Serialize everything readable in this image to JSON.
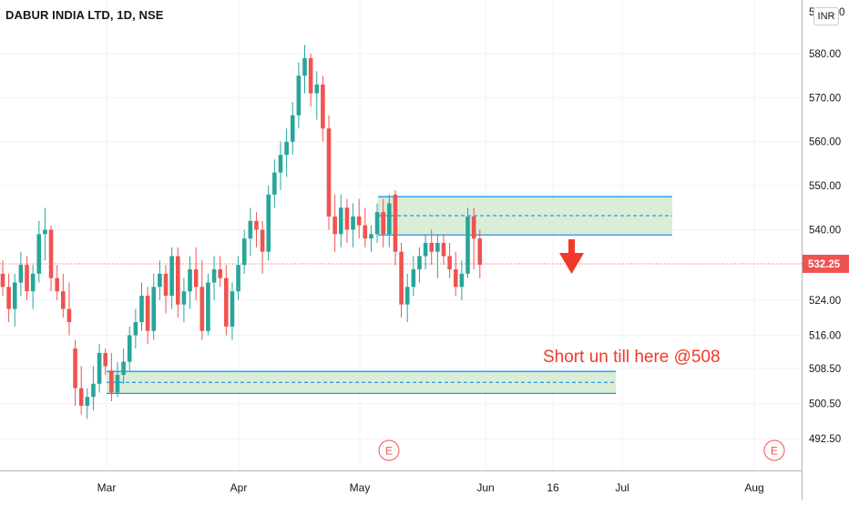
{
  "header": {
    "title": "DABUR INDIA LTD, 1D, NSE",
    "currency": "INR"
  },
  "chart_data": {
    "type": "candlestick",
    "ylim": [
      488,
      587
    ],
    "y_ticks": [
      {
        "value": 500.5,
        "label": "500.50"
      },
      {
        "value": 508.5,
        "label": "508.50"
      },
      {
        "value": 516.0,
        "label": "516.00"
      },
      {
        "value": 524.0,
        "label": "524.00"
      },
      {
        "value": 540.0,
        "label": "540.00"
      },
      {
        "value": 550.0,
        "label": "550.00"
      },
      {
        "value": 560.0,
        "label": "560.00"
      },
      {
        "value": 570.0,
        "label": "570.00"
      },
      {
        "value": 580.0,
        "label": "580.00"
      },
      {
        "value": 492.5,
        "label": "492.50"
      }
    ],
    "x_ticks": [
      "Mar",
      "Apr",
      "May",
      "Jun",
      "16",
      "Jul",
      "Aug"
    ],
    "last_price": 532.25,
    "last_price_label": "532.25",
    "colors": {
      "up": "#26a69a",
      "down": "#ef5350",
      "zone_fill": "#d4ead0",
      "zone_line": "#2196f3",
      "last_price": "#ef5350",
      "annotation": "#f0392b"
    },
    "candles": [
      {
        "o": 530,
        "h": 533,
        "l": 525,
        "c": 527
      },
      {
        "o": 527,
        "h": 530,
        "l": 519,
        "c": 522
      },
      {
        "o": 522,
        "h": 530,
        "l": 518,
        "c": 528
      },
      {
        "o": 528,
        "h": 535,
        "l": 525,
        "c": 532
      },
      {
        "o": 532,
        "h": 534,
        "l": 524,
        "c": 526
      },
      {
        "o": 526,
        "h": 532,
        "l": 522,
        "c": 530
      },
      {
        "o": 530,
        "h": 542,
        "l": 528,
        "c": 539
      },
      {
        "o": 539,
        "h": 545,
        "l": 533,
        "c": 540
      },
      {
        "o": 540,
        "h": 541,
        "l": 526,
        "c": 529
      },
      {
        "o": 529,
        "h": 532,
        "l": 524,
        "c": 526
      },
      {
        "o": 526,
        "h": 530,
        "l": 520,
        "c": 522
      },
      {
        "o": 522,
        "h": 528,
        "l": 516,
        "c": 519
      },
      {
        "o": 513,
        "h": 515,
        "l": 500,
        "c": 504
      },
      {
        "o": 504,
        "h": 509,
        "l": 498,
        "c": 500
      },
      {
        "o": 500,
        "h": 504,
        "l": 497,
        "c": 502
      },
      {
        "o": 502,
        "h": 509,
        "l": 499,
        "c": 505
      },
      {
        "o": 505,
        "h": 514,
        "l": 503,
        "c": 512
      },
      {
        "o": 512,
        "h": 513,
        "l": 507,
        "c": 509
      },
      {
        "o": 508,
        "h": 512,
        "l": 501,
        "c": 503
      },
      {
        "o": 503,
        "h": 510,
        "l": 502,
        "c": 507
      },
      {
        "o": 507,
        "h": 513,
        "l": 505,
        "c": 510
      },
      {
        "o": 510,
        "h": 518,
        "l": 508,
        "c": 516
      },
      {
        "o": 516,
        "h": 522,
        "l": 513,
        "c": 519
      },
      {
        "o": 519,
        "h": 528,
        "l": 517,
        "c": 525
      },
      {
        "o": 525,
        "h": 527,
        "l": 514,
        "c": 517
      },
      {
        "o": 517,
        "h": 530,
        "l": 515,
        "c": 527
      },
      {
        "o": 527,
        "h": 533,
        "l": 524,
        "c": 530
      },
      {
        "o": 530,
        "h": 532,
        "l": 521,
        "c": 525
      },
      {
        "o": 525,
        "h": 536,
        "l": 522,
        "c": 534
      },
      {
        "o": 534,
        "h": 536,
        "l": 520,
        "c": 523
      },
      {
        "o": 523,
        "h": 529,
        "l": 519,
        "c": 526
      },
      {
        "o": 526,
        "h": 534,
        "l": 522,
        "c": 531
      },
      {
        "o": 531,
        "h": 536,
        "l": 524,
        "c": 527
      },
      {
        "o": 527,
        "h": 533,
        "l": 515,
        "c": 517
      },
      {
        "o": 517,
        "h": 530,
        "l": 516,
        "c": 528
      },
      {
        "o": 528,
        "h": 534,
        "l": 524,
        "c": 531
      },
      {
        "o": 531,
        "h": 534,
        "l": 527,
        "c": 529
      },
      {
        "o": 529,
        "h": 532,
        "l": 516,
        "c": 518
      },
      {
        "o": 518,
        "h": 528,
        "l": 515,
        "c": 526
      },
      {
        "o": 526,
        "h": 534,
        "l": 524,
        "c": 532
      },
      {
        "o": 532,
        "h": 540,
        "l": 530,
        "c": 538
      },
      {
        "o": 538,
        "h": 545,
        "l": 534,
        "c": 542
      },
      {
        "o": 542,
        "h": 544,
        "l": 536,
        "c": 540
      },
      {
        "o": 540,
        "h": 542,
        "l": 530,
        "c": 535
      },
      {
        "o": 535,
        "h": 550,
        "l": 533,
        "c": 548
      },
      {
        "o": 548,
        "h": 556,
        "l": 545,
        "c": 553
      },
      {
        "o": 553,
        "h": 560,
        "l": 549,
        "c": 557
      },
      {
        "o": 557,
        "h": 563,
        "l": 552,
        "c": 560
      },
      {
        "o": 560,
        "h": 569,
        "l": 557,
        "c": 566
      },
      {
        "o": 566,
        "h": 578,
        "l": 563,
        "c": 575
      },
      {
        "o": 575,
        "h": 582,
        "l": 571,
        "c": 579
      },
      {
        "o": 579,
        "h": 580,
        "l": 568,
        "c": 571
      },
      {
        "o": 571,
        "h": 576,
        "l": 565,
        "c": 573
      },
      {
        "o": 573,
        "h": 575,
        "l": 560,
        "c": 563
      },
      {
        "o": 563,
        "h": 566,
        "l": 540,
        "c": 543
      },
      {
        "o": 543,
        "h": 548,
        "l": 535,
        "c": 539
      },
      {
        "o": 539,
        "h": 548,
        "l": 536,
        "c": 545
      },
      {
        "o": 545,
        "h": 547,
        "l": 537,
        "c": 540
      },
      {
        "o": 540,
        "h": 546,
        "l": 536,
        "c": 543
      },
      {
        "o": 543,
        "h": 547,
        "l": 538,
        "c": 541
      },
      {
        "o": 541,
        "h": 545,
        "l": 536,
        "c": 538
      },
      {
        "o": 538,
        "h": 541,
        "l": 535,
        "c": 539
      },
      {
        "o": 539,
        "h": 546,
        "l": 537,
        "c": 544
      },
      {
        "o": 544,
        "h": 547,
        "l": 536,
        "c": 539
      },
      {
        "o": 539,
        "h": 548,
        "l": 536,
        "c": 546
      },
      {
        "o": 548,
        "h": 549,
        "l": 532,
        "c": 535
      },
      {
        "o": 535,
        "h": 537,
        "l": 520,
        "c": 523
      },
      {
        "o": 523,
        "h": 530,
        "l": 519,
        "c": 527
      },
      {
        "o": 527,
        "h": 534,
        "l": 525,
        "c": 531
      },
      {
        "o": 531,
        "h": 536,
        "l": 528,
        "c": 534
      },
      {
        "o": 534,
        "h": 539,
        "l": 531,
        "c": 537
      },
      {
        "o": 537,
        "h": 540,
        "l": 532,
        "c": 535
      },
      {
        "o": 535,
        "h": 539,
        "l": 529,
        "c": 537
      },
      {
        "o": 537,
        "h": 539,
        "l": 532,
        "c": 534
      },
      {
        "o": 534,
        "h": 537,
        "l": 529,
        "c": 531
      },
      {
        "o": 531,
        "h": 535,
        "l": 525,
        "c": 527
      },
      {
        "o": 527,
        "h": 533,
        "l": 524,
        "c": 530
      },
      {
        "o": 530,
        "h": 545,
        "l": 529,
        "c": 543
      },
      {
        "o": 543,
        "h": 545,
        "l": 531,
        "c": 538
      },
      {
        "o": 538,
        "h": 540,
        "l": 529,
        "c": 532
      }
    ],
    "zones": [
      {
        "top": 547.5,
        "bottom": 538.8,
        "mid": 543.2
      },
      {
        "top": 507.8,
        "bottom": 502.8,
        "mid": 505.3
      }
    ],
    "annotation": "Short un till here @508",
    "earnings_markers": [
      "E",
      "E"
    ]
  }
}
